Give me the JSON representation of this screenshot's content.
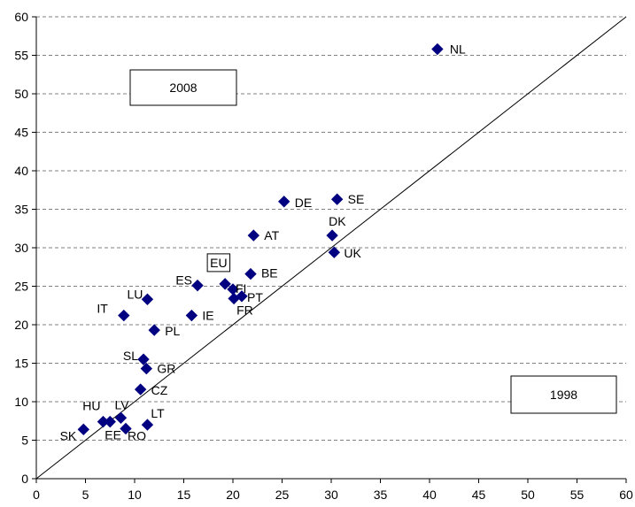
{
  "chart_data": {
    "type": "scatter",
    "title": "",
    "xlabel": "",
    "ylabel": "",
    "xlim": [
      0,
      60
    ],
    "ylim": [
      0,
      60
    ],
    "xticks": [
      0,
      5,
      10,
      15,
      20,
      25,
      30,
      35,
      40,
      45,
      50,
      55,
      60
    ],
    "yticks": [
      0,
      5,
      10,
      15,
      20,
      25,
      30,
      35,
      40,
      45,
      50,
      55,
      60
    ],
    "grid": "horizontal dashed",
    "reference_line": "y = x",
    "marker_color": "#000080",
    "annotations": [
      {
        "text": "2008",
        "position": "upper-left"
      },
      {
        "text": "1998",
        "position": "lower-right"
      }
    ],
    "points": [
      {
        "label": "NL",
        "x": 40.8,
        "y": 55.8
      },
      {
        "label": "SE",
        "x": 30.6,
        "y": 36.3
      },
      {
        "label": "DE",
        "x": 25.2,
        "y": 36.0
      },
      {
        "label": "AT",
        "x": 22.1,
        "y": 31.6
      },
      {
        "label": "DK",
        "x": 30.1,
        "y": 31.6
      },
      {
        "label": "UK",
        "x": 30.3,
        "y": 29.4
      },
      {
        "label": "BE",
        "x": 21.8,
        "y": 26.6
      },
      {
        "label": "EU",
        "x": 19.2,
        "y": 25.3,
        "boxed": true
      },
      {
        "label": "ES",
        "x": 16.4,
        "y": 25.1
      },
      {
        "label": "FI",
        "x": 20.0,
        "y": 24.6
      },
      {
        "label": "PT",
        "x": 20.9,
        "y": 23.7
      },
      {
        "label": "FR",
        "x": 20.1,
        "y": 23.4
      },
      {
        "label": "LU",
        "x": 11.3,
        "y": 23.3
      },
      {
        "label": "IT",
        "x": 8.9,
        "y": 21.2
      },
      {
        "label": "IE",
        "x": 15.8,
        "y": 21.2
      },
      {
        "label": "PL",
        "x": 12.0,
        "y": 19.3
      },
      {
        "label": "SL",
        "x": 10.9,
        "y": 15.5
      },
      {
        "label": "GR",
        "x": 11.2,
        "y": 14.3
      },
      {
        "label": "CZ",
        "x": 10.6,
        "y": 11.6
      },
      {
        "label": "HU",
        "x": 6.8,
        "y": 7.4
      },
      {
        "label": "EE",
        "x": 7.5,
        "y": 7.4
      },
      {
        "label": "LV",
        "x": 8.6,
        "y": 7.9
      },
      {
        "label": "LT",
        "x": 11.3,
        "y": 7.0
      },
      {
        "label": "RO",
        "x": 9.1,
        "y": 6.5
      },
      {
        "label": "SK",
        "x": 4.8,
        "y": 6.4
      }
    ]
  }
}
